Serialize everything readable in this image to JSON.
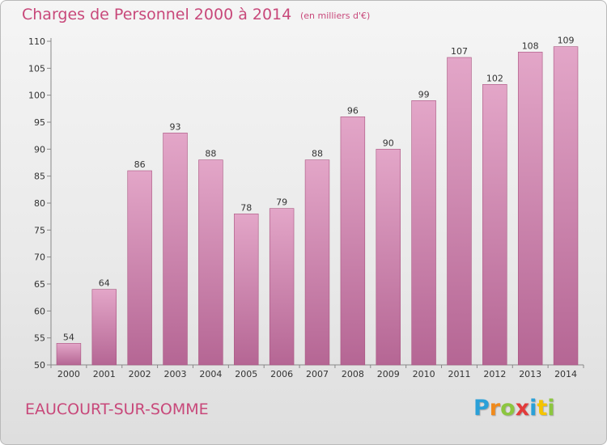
{
  "header": {
    "title": "Charges de Personnel 2000 à 2014",
    "subtitle": "(en milliers d'€)"
  },
  "footer": {
    "commune": "EAUCOURT-SUR-SOMME",
    "logo": {
      "letters": [
        "P",
        "r",
        "o",
        "x",
        "i",
        "t",
        "i"
      ],
      "colors": [
        "#2aa0d8",
        "#f08a1c",
        "#8cc63f",
        "#e23b3b",
        "#2aa0d8",
        "#f5c400",
        "#8cc63f"
      ]
    }
  },
  "chart_data": {
    "type": "bar",
    "title": "Charges de Personnel 2000 à 2014",
    "subtitle": "(en milliers d'€)",
    "categories": [
      "2000",
      "2001",
      "2002",
      "2003",
      "2004",
      "2005",
      "2006",
      "2007",
      "2008",
      "2009",
      "2010",
      "2011",
      "2012",
      "2013",
      "2014"
    ],
    "values": [
      54,
      64,
      86,
      93,
      88,
      78,
      79,
      88,
      96,
      90,
      99,
      107,
      102,
      108,
      109
    ],
    "value_labels": [
      "54",
      "64",
      "86",
      "93",
      "88",
      "78",
      "79",
      "88",
      "96",
      "90",
      "99",
      "107",
      "102",
      "108",
      "109"
    ],
    "y_ticks": [
      "50",
      "55",
      "60",
      "65",
      "70",
      "75",
      "80",
      "85",
      "90",
      "95",
      "100",
      "105",
      "110"
    ],
    "ylim": [
      50,
      110
    ],
    "grid": false,
    "bar_color": "#c76b9a"
  }
}
